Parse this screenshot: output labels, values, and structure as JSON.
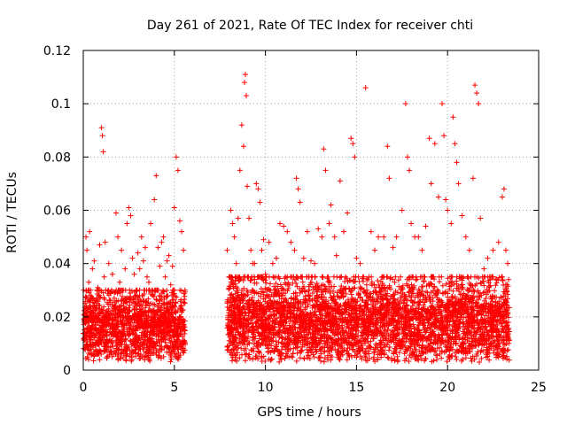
{
  "chart_data": {
    "type": "scatter",
    "title": "Day 261 of 2021, Rate Of TEC Index for receiver chti",
    "xlabel": "GPS time / hours",
    "ylabel": "ROTI / TECUs",
    "xlim": [
      0,
      25
    ],
    "ylim": [
      0,
      0.12
    ],
    "xticks": [
      0,
      5,
      10,
      15,
      20,
      25
    ],
    "xtick_labels": [
      "0",
      "5",
      "10",
      "15",
      "20",
      "25"
    ],
    "yticks": [
      0,
      0.02,
      0.04,
      0.06,
      0.08,
      0.1,
      0.12
    ],
    "ytick_labels": [
      "0",
      "0.02",
      "0.04",
      "0.06",
      "0.08",
      "0.1",
      "0.12"
    ],
    "grid": true,
    "marker": "+",
    "color": "#ff0000",
    "series": [
      {
        "name": "ROTI",
        "points": [
          [
            0.05,
            0.012
          ],
          [
            0.1,
            0.025
          ],
          [
            0.15,
            0.05
          ],
          [
            0.2,
            0.045
          ],
          [
            0.25,
            0.018
          ],
          [
            0.3,
            0.033
          ],
          [
            0.35,
            0.052
          ],
          [
            0.4,
            0.028
          ],
          [
            0.45,
            0.015
          ],
          [
            0.5,
            0.038
          ],
          [
            0.55,
            0.02
          ],
          [
            0.6,
            0.041
          ],
          [
            0.7,
            0.026
          ],
          [
            0.8,
            0.031
          ],
          [
            0.9,
            0.047
          ],
          [
            1.0,
            0.091
          ],
          [
            1.05,
            0.088
          ],
          [
            1.1,
            0.082
          ],
          [
            1.15,
            0.035
          ],
          [
            1.2,
            0.048
          ],
          [
            1.3,
            0.022
          ],
          [
            1.4,
            0.04
          ],
          [
            1.5,
            0.029
          ],
          [
            1.6,
            0.036
          ],
          [
            1.7,
            0.027
          ],
          [
            1.8,
            0.059
          ],
          [
            1.9,
            0.05
          ],
          [
            2.0,
            0.033
          ],
          [
            2.1,
            0.045
          ],
          [
            2.2,
            0.03
          ],
          [
            2.3,
            0.038
          ],
          [
            2.4,
            0.055
          ],
          [
            2.5,
            0.061
          ],
          [
            2.6,
            0.058
          ],
          [
            2.7,
            0.042
          ],
          [
            2.8,
            0.036
          ],
          [
            2.9,
            0.03
          ],
          [
            3.0,
            0.044
          ],
          [
            3.1,
            0.038
          ],
          [
            3.2,
            0.05
          ],
          [
            3.3,
            0.041
          ],
          [
            3.4,
            0.046
          ],
          [
            3.5,
            0.035
          ],
          [
            3.6,
            0.033
          ],
          [
            3.7,
            0.055
          ],
          [
            3.8,
            0.028
          ],
          [
            3.9,
            0.064
          ],
          [
            4.0,
            0.073
          ],
          [
            4.1,
            0.046
          ],
          [
            4.2,
            0.039
          ],
          [
            4.3,
            0.048
          ],
          [
            4.4,
            0.05
          ],
          [
            4.5,
            0.035
          ],
          [
            4.6,
            0.041
          ],
          [
            4.7,
            0.043
          ],
          [
            4.8,
            0.032
          ],
          [
            4.9,
            0.039
          ],
          [
            5.0,
            0.061
          ],
          [
            5.1,
            0.08
          ],
          [
            5.2,
            0.075
          ],
          [
            5.3,
            0.056
          ],
          [
            5.4,
            0.052
          ],
          [
            5.5,
            0.045
          ],
          [
            7.9,
            0.045
          ],
          [
            8.0,
            0.035
          ],
          [
            8.1,
            0.06
          ],
          [
            8.2,
            0.055
          ],
          [
            8.3,
            0.05
          ],
          [
            8.4,
            0.04
          ],
          [
            8.5,
            0.057
          ],
          [
            8.6,
            0.075
          ],
          [
            8.7,
            0.092
          ],
          [
            8.8,
            0.084
          ],
          [
            8.85,
            0.108
          ],
          [
            8.9,
            0.111
          ],
          [
            8.95,
            0.103
          ],
          [
            9.0,
            0.069
          ],
          [
            9.1,
            0.057
          ],
          [
            9.2,
            0.045
          ],
          [
            9.3,
            0.04
          ],
          [
            9.4,
            0.04
          ],
          [
            9.5,
            0.07
          ],
          [
            9.6,
            0.068
          ],
          [
            9.7,
            0.063
          ],
          [
            9.8,
            0.045
          ],
          [
            9.9,
            0.049
          ],
          [
            10.0,
            0.036
          ],
          [
            10.2,
            0.048
          ],
          [
            10.4,
            0.04
          ],
          [
            10.6,
            0.042
          ],
          [
            10.8,
            0.055
          ],
          [
            11.0,
            0.054
          ],
          [
            11.2,
            0.052
          ],
          [
            11.4,
            0.048
          ],
          [
            11.6,
            0.045
          ],
          [
            11.7,
            0.072
          ],
          [
            11.8,
            0.068
          ],
          [
            11.9,
            0.063
          ],
          [
            12.1,
            0.042
          ],
          [
            12.3,
            0.052
          ],
          [
            12.5,
            0.041
          ],
          [
            12.7,
            0.04
          ],
          [
            12.9,
            0.053
          ],
          [
            13.1,
            0.05
          ],
          [
            13.2,
            0.083
          ],
          [
            13.3,
            0.075
          ],
          [
            13.5,
            0.055
          ],
          [
            13.6,
            0.062
          ],
          [
            13.8,
            0.05
          ],
          [
            13.9,
            0.043
          ],
          [
            14.1,
            0.071
          ],
          [
            14.3,
            0.052
          ],
          [
            14.5,
            0.059
          ],
          [
            14.7,
            0.087
          ],
          [
            14.8,
            0.085
          ],
          [
            14.9,
            0.08
          ],
          [
            15.0,
            0.042
          ],
          [
            15.2,
            0.04
          ],
          [
            15.5,
            0.106
          ],
          [
            15.8,
            0.052
          ],
          [
            16.0,
            0.045
          ],
          [
            16.2,
            0.05
          ],
          [
            16.5,
            0.05
          ],
          [
            16.7,
            0.084
          ],
          [
            16.8,
            0.072
          ],
          [
            17.0,
            0.046
          ],
          [
            17.2,
            0.05
          ],
          [
            17.5,
            0.06
          ],
          [
            17.7,
            0.1
          ],
          [
            17.8,
            0.08
          ],
          [
            17.9,
            0.075
          ],
          [
            18.0,
            0.055
          ],
          [
            18.2,
            0.05
          ],
          [
            18.4,
            0.05
          ],
          [
            18.6,
            0.045
          ],
          [
            18.8,
            0.054
          ],
          [
            19.0,
            0.087
          ],
          [
            19.1,
            0.07
          ],
          [
            19.3,
            0.085
          ],
          [
            19.5,
            0.065
          ],
          [
            19.7,
            0.1
          ],
          [
            19.8,
            0.088
          ],
          [
            19.9,
            0.064
          ],
          [
            20.0,
            0.06
          ],
          [
            20.2,
            0.055
          ],
          [
            20.3,
            0.095
          ],
          [
            20.4,
            0.085
          ],
          [
            20.5,
            0.078
          ],
          [
            20.6,
            0.07
          ],
          [
            20.8,
            0.058
          ],
          [
            21.0,
            0.05
          ],
          [
            21.2,
            0.045
          ],
          [
            21.4,
            0.072
          ],
          [
            21.5,
            0.107
          ],
          [
            21.6,
            0.104
          ],
          [
            21.7,
            0.1
          ],
          [
            21.8,
            0.057
          ],
          [
            22.0,
            0.038
          ],
          [
            22.2,
            0.042
          ],
          [
            22.5,
            0.045
          ],
          [
            22.8,
            0.048
          ],
          [
            23.0,
            0.065
          ],
          [
            23.1,
            0.068
          ],
          [
            23.2,
            0.045
          ],
          [
            23.3,
            0.04
          ],
          [
            23.35,
            0.034
          ]
        ]
      }
    ],
    "dense_band": [
      {
        "x_start": 0.0,
        "x_end": 5.6,
        "y_low": 0.003,
        "y_high": 0.03
      },
      {
        "x_start": 7.9,
        "x_end": 23.4,
        "y_low": 0.003,
        "y_high": 0.035
      }
    ]
  }
}
